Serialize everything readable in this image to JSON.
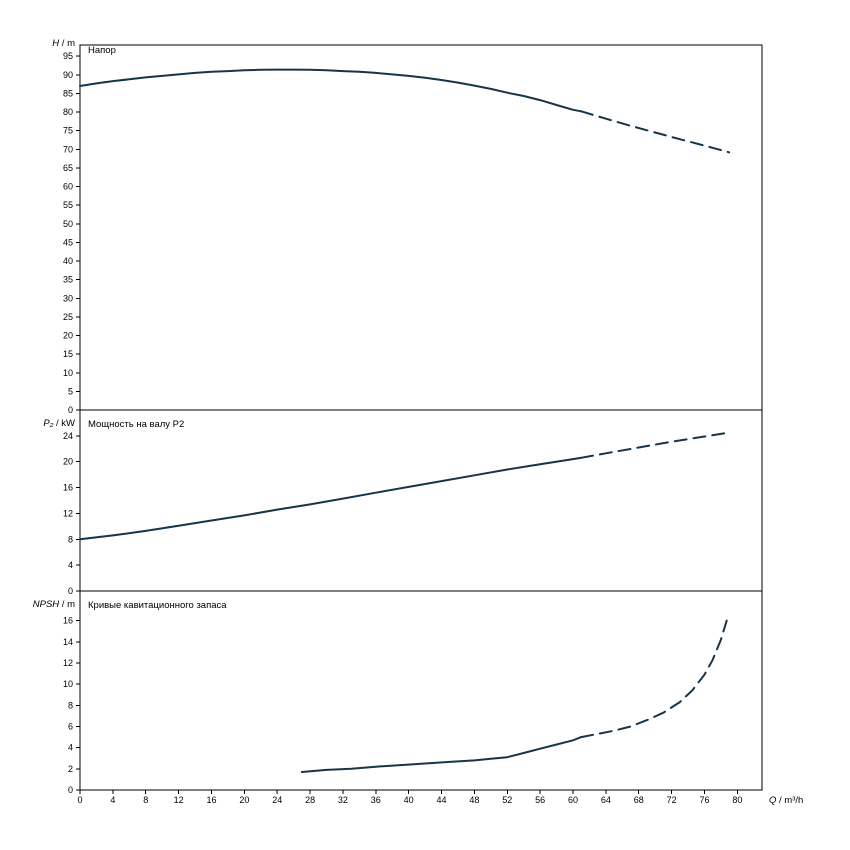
{
  "page": {
    "background": "#ffffff"
  },
  "x_axis": {
    "label": "Q / m³/h",
    "min": 0,
    "max": 83,
    "ticks": {
      "min": 0,
      "max": 80,
      "step": 4
    }
  },
  "style": {
    "line_color": "#173549",
    "axis_color": "#000000",
    "grid": false,
    "dash_pattern": "12 7"
  },
  "chart_data": [
    {
      "type": "line",
      "title": "Напор",
      "ylabel": "H / m",
      "ylim": [
        0,
        98
      ],
      "yticks": {
        "min": 0,
        "max": 95,
        "step": 5
      },
      "series": [
        {
          "name": "head-curve-solid",
          "style": "solid",
          "points": [
            [
              0,
              87.0
            ],
            [
              2,
              87.7
            ],
            [
              4,
              88.3
            ],
            [
              6,
              88.8
            ],
            [
              8,
              89.3
            ],
            [
              10,
              89.7
            ],
            [
              12,
              90.1
            ],
            [
              14,
              90.5
            ],
            [
              16,
              90.8
            ],
            [
              18,
              91.0
            ],
            [
              20,
              91.2
            ],
            [
              22,
              91.35
            ],
            [
              24,
              91.4
            ],
            [
              26,
              91.4
            ],
            [
              28,
              91.35
            ],
            [
              30,
              91.2
            ],
            [
              32,
              91.0
            ],
            [
              34,
              90.8
            ],
            [
              36,
              90.5
            ],
            [
              38,
              90.1
            ],
            [
              40,
              89.7
            ],
            [
              42,
              89.2
            ],
            [
              44,
              88.6
            ],
            [
              46,
              87.9
            ],
            [
              48,
              87.1
            ],
            [
              50,
              86.2
            ],
            [
              52,
              85.2
            ],
            [
              54,
              84.3
            ],
            [
              56,
              83.2
            ],
            [
              58,
              81.9
            ],
            [
              60,
              80.6
            ],
            [
              61,
              80.2
            ]
          ]
        },
        {
          "name": "head-curve-extrapolated",
          "style": "dashed",
          "points": [
            [
              61,
              80.2
            ],
            [
              64,
              78.2
            ],
            [
              67,
              76.3
            ],
            [
              70,
              74.5
            ],
            [
              73,
              72.7
            ],
            [
              76,
              71.0
            ],
            [
              79,
              69.2
            ]
          ]
        }
      ]
    },
    {
      "type": "line",
      "title": "Мощность на валу P2",
      "ylabel": "P₂ / kW",
      "ylim": [
        0,
        28
      ],
      "yticks": {
        "min": 0,
        "max": 24,
        "step": 4
      },
      "series": [
        {
          "name": "shaft-power-solid",
          "style": "solid",
          "points": [
            [
              0,
              8.0
            ],
            [
              4,
              8.6
            ],
            [
              8,
              9.3
            ],
            [
              12,
              10.1
            ],
            [
              16,
              10.9
            ],
            [
              20,
              11.7
            ],
            [
              24,
              12.6
            ],
            [
              28,
              13.4
            ],
            [
              32,
              14.3
            ],
            [
              36,
              15.2
            ],
            [
              40,
              16.1
            ],
            [
              44,
              17.0
            ],
            [
              48,
              17.9
            ],
            [
              52,
              18.8
            ],
            [
              56,
              19.6
            ],
            [
              60,
              20.4
            ],
            [
              61,
              20.6
            ]
          ]
        },
        {
          "name": "shaft-power-extrapolated",
          "style": "dashed",
          "points": [
            [
              61,
              20.6
            ],
            [
              64,
              21.3
            ],
            [
              68,
              22.2
            ],
            [
              72,
              23.1
            ],
            [
              76,
              23.9
            ],
            [
              79,
              24.5
            ]
          ]
        }
      ]
    },
    {
      "type": "line",
      "title": "Кривые кавитационного запаса",
      "ylabel": "NPSH / m",
      "ylim": [
        0,
        18.8
      ],
      "yticks": {
        "min": 0,
        "max": 16,
        "step": 2
      },
      "series": [
        {
          "name": "npsh-curve-solid",
          "style": "solid",
          "points": [
            [
              27,
              1.7
            ],
            [
              30,
              1.9
            ],
            [
              33,
              2.0
            ],
            [
              36,
              2.2
            ],
            [
              39,
              2.35
            ],
            [
              42,
              2.5
            ],
            [
              45,
              2.65
            ],
            [
              48,
              2.8
            ],
            [
              50,
              2.95
            ],
            [
              52,
              3.1
            ],
            [
              54,
              3.5
            ],
            [
              56,
              3.9
            ],
            [
              58,
              4.3
            ],
            [
              60,
              4.7
            ],
            [
              61,
              5.0
            ]
          ]
        },
        {
          "name": "npsh-curve-extrapolated",
          "style": "dashed",
          "points": [
            [
              61,
              5.0
            ],
            [
              63,
              5.3
            ],
            [
              65,
              5.6
            ],
            [
              67,
              6.0
            ],
            [
              69,
              6.6
            ],
            [
              71,
              7.3
            ],
            [
              73,
              8.3
            ],
            [
              74.5,
              9.4
            ],
            [
              76,
              10.9
            ],
            [
              77,
              12.3
            ],
            [
              78,
              14.2
            ],
            [
              78.7,
              16.0
            ]
          ]
        }
      ]
    }
  ]
}
